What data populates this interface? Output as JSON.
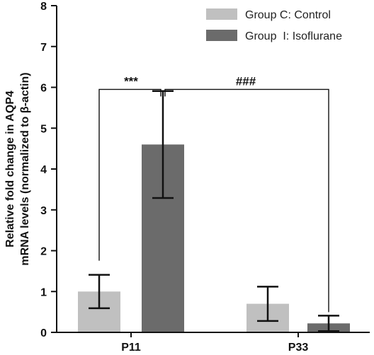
{
  "chart_data": {
    "type": "bar",
    "categories": [
      "P11",
      "P33"
    ],
    "ylabel_line1": "Relative fold change in AQP4",
    "ylabel_line2": "mRNA levels (normalized to β-actin)",
    "ylim": [
      0,
      8
    ],
    "yticks": [
      "0",
      "1",
      "2",
      "3",
      "4",
      "5",
      "6",
      "7",
      "8"
    ],
    "series": [
      {
        "name": "Group C: Control",
        "color": "#c0c0c0",
        "values": [
          1.0,
          0.7
        ],
        "errors": [
          0.41,
          0.42
        ]
      },
      {
        "name": "Group  I: Isoflurane",
        "color": "#6b6b6b",
        "values": [
          4.6,
          0.22
        ],
        "errors": [
          1.31,
          0.19
        ]
      }
    ],
    "legend_position": "top-right",
    "significance": [
      {
        "label": "***",
        "from": [
          0,
          0
        ],
        "to": [
          0,
          1
        ],
        "height": 5.95
      },
      {
        "label": "###",
        "from": [
          0,
          1
        ],
        "to": [
          1,
          1
        ],
        "height": 5.95
      }
    ]
  }
}
